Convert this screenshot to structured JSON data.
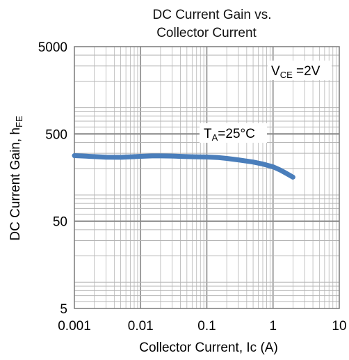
{
  "chart_data": {
    "type": "line",
    "title_lines": [
      "DC Current Gain vs.",
      "Collector Current"
    ],
    "xlabel": "Collector Current, Ic (A)",
    "ylabel": {
      "main": "DC Current Gain,  h",
      "sub": "FE"
    },
    "x_scale": "log",
    "y_scale": "log",
    "xlim": [
      0.001,
      10
    ],
    "ylim": [
      5,
      5000
    ],
    "x_ticks": [
      {
        "value": 0.001,
        "label": "0.001"
      },
      {
        "value": 0.01,
        "label": "0.01"
      },
      {
        "value": 0.1,
        "label": "0.1"
      },
      {
        "value": 1,
        "label": "1"
      },
      {
        "value": 10,
        "label": "10"
      }
    ],
    "y_ticks": [
      {
        "value": 5,
        "label": "5"
      },
      {
        "value": 50,
        "label": "50"
      },
      {
        "value": 500,
        "label": "500"
      },
      {
        "value": 5000,
        "label": "5000"
      }
    ],
    "grid": true,
    "annotations": [
      {
        "main": "V",
        "sub": "CE",
        "tail": " =2V"
      },
      {
        "main": "T",
        "sub": "A",
        "tail": "=25°C"
      }
    ],
    "series": [
      {
        "color": "#4a7ebb",
        "points": [
          [
            0.001,
            282
          ],
          [
            0.0015,
            278
          ],
          [
            0.002,
            275
          ],
          [
            0.003,
            271
          ],
          [
            0.005,
            270
          ],
          [
            0.007,
            273
          ],
          [
            0.01,
            277
          ],
          [
            0.015,
            280
          ],
          [
            0.02,
            280
          ],
          [
            0.03,
            279
          ],
          [
            0.05,
            275
          ],
          [
            0.07,
            273
          ],
          [
            0.1,
            272
          ],
          [
            0.15,
            268
          ],
          [
            0.2,
            262
          ],
          [
            0.3,
            252
          ],
          [
            0.5,
            238
          ],
          [
            0.7,
            226
          ],
          [
            1.0,
            210
          ],
          [
            1.3,
            192
          ],
          [
            1.6,
            176
          ],
          [
            2.0,
            160
          ]
        ]
      }
    ]
  }
}
